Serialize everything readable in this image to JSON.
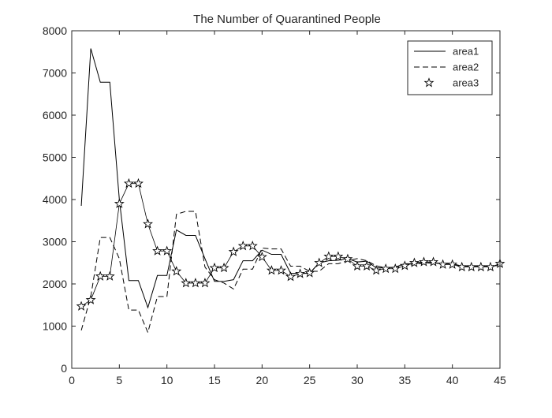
{
  "chart_data": {
    "type": "line",
    "title": "The Number of Quarantined People",
    "xlabel": "",
    "ylabel": "",
    "xlim": [
      0,
      45
    ],
    "ylim": [
      0,
      8000
    ],
    "xticks": [
      0,
      5,
      10,
      15,
      20,
      25,
      30,
      35,
      40,
      45
    ],
    "yticks": [
      0,
      1000,
      2000,
      3000,
      4000,
      5000,
      6000,
      7000,
      8000
    ],
    "grid": false,
    "legend_position": "top-right",
    "x": [
      1,
      2,
      3,
      4,
      5,
      6,
      7,
      8,
      9,
      10,
      11,
      12,
      13,
      14,
      15,
      16,
      17,
      18,
      19,
      20,
      21,
      22,
      23,
      24,
      25,
      26,
      27,
      28,
      29,
      30,
      31,
      32,
      33,
      34,
      35,
      36,
      37,
      38,
      39,
      40,
      41,
      42,
      43,
      44,
      45
    ],
    "series": [
      {
        "name": "area1",
        "style": "solid",
        "color": "#000000",
        "values": [
          3850,
          7580,
          6780,
          6780,
          4000,
          2080,
          2080,
          1440,
          2200,
          2200,
          3280,
          3150,
          3150,
          2600,
          2060,
          2060,
          2100,
          2550,
          2550,
          2800,
          2700,
          2700,
          2250,
          2250,
          2250,
          2500,
          2550,
          2560,
          2600,
          2520,
          2540,
          2380,
          2380,
          2400,
          2480,
          2480,
          2500,
          2500,
          2480,
          2480,
          2420,
          2420,
          2420,
          2420,
          2440
        ]
      },
      {
        "name": "area2",
        "style": "dashed",
        "color": "#000000",
        "values": [
          900,
          1700,
          3100,
          3100,
          2600,
          1380,
          1380,
          850,
          1700,
          1700,
          3650,
          3720,
          3720,
          2400,
          2100,
          2020,
          1880,
          2350,
          2350,
          2850,
          2830,
          2830,
          2420,
          2420,
          2300,
          2300,
          2480,
          2480,
          2550,
          2600,
          2550,
          2430,
          2380,
          2380,
          2450,
          2450,
          2500,
          2490,
          2490,
          2480,
          2420,
          2420,
          2420,
          2420,
          2470
        ]
      },
      {
        "name": "area3",
        "style": "star-markers",
        "color": "#000000",
        "values": [
          1470,
          1620,
          2180,
          2180,
          3900,
          4380,
          4380,
          3420,
          2780,
          2780,
          2300,
          2020,
          2020,
          2020,
          2380,
          2380,
          2760,
          2900,
          2900,
          2640,
          2320,
          2320,
          2170,
          2240,
          2260,
          2500,
          2650,
          2650,
          2590,
          2420,
          2420,
          2320,
          2360,
          2360,
          2430,
          2500,
          2520,
          2520,
          2460,
          2460,
          2400,
          2400,
          2400,
          2400,
          2480
        ]
      }
    ]
  }
}
